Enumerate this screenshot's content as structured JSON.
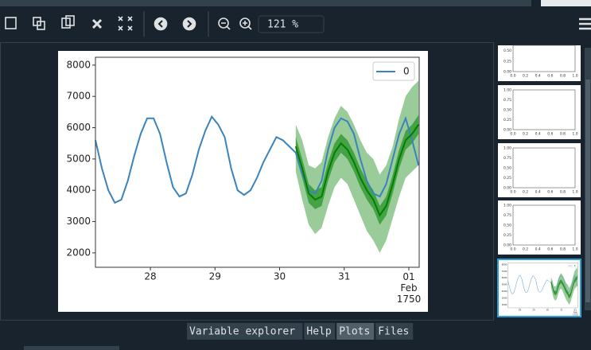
{
  "toolbar": {
    "zoom": "121 %"
  },
  "tabs": [
    "Variable explorer",
    "Help",
    "Plots",
    "Files"
  ],
  "active_tab": 2,
  "thumbnails": [
    {
      "yticks": [
        "0.50",
        "0.25",
        "0.00"
      ],
      "xticks": [
        "0.0",
        "0.2",
        "0.4",
        "0.6",
        "0.8",
        "1.0"
      ]
    },
    {
      "yticks": [
        "1.00",
        "0.75",
        "0.50",
        "0.25",
        "0.00"
      ],
      "xticks": [
        "0.0",
        "0.2",
        "0.4",
        "0.6",
        "0.8",
        "1.0"
      ]
    },
    {
      "yticks": [
        "1.00",
        "0.75",
        "0.50",
        "0.25",
        "0.00"
      ],
      "xticks": [
        "0.0",
        "0.2",
        "0.4",
        "0.6",
        "0.8",
        "1.0"
      ]
    },
    {
      "yticks": [
        "1.00",
        "0.75",
        "0.50",
        "0.25",
        "0.00"
      ],
      "xticks": [
        "0.0",
        "0.2",
        "0.4",
        "0.6",
        "0.8",
        "1.0"
      ]
    }
  ],
  "chart_data": {
    "type": "line",
    "x": [
      27.15,
      27.25,
      27.35,
      27.45,
      27.55,
      27.65,
      27.75,
      27.85,
      27.95,
      28.05,
      28.15,
      28.25,
      28.35,
      28.45,
      28.55,
      28.65,
      28.75,
      28.85,
      28.95,
      29.05,
      29.15,
      29.25,
      29.35,
      29.45,
      29.55,
      29.65,
      29.75,
      29.85,
      29.95,
      30.05,
      30.15,
      30.25,
      30.35,
      30.45,
      30.55,
      30.65,
      30.75,
      30.85,
      30.95,
      31.05,
      31.15,
      31.25,
      31.35,
      31.45,
      31.55,
      31.65,
      31.75,
      31.85,
      31.95,
      32.05,
      32.15
    ],
    "series": [
      {
        "name": "0",
        "color": "#3b83bd",
        "values": [
          5600,
          4700,
          4000,
          3600,
          3700,
          4300,
          5100,
          5800,
          6300,
          6300,
          5800,
          4900,
          4100,
          3800,
          3900,
          4500,
          5300,
          5900,
          6350,
          6100,
          5700,
          4700,
          4000,
          3850,
          4000,
          4400,
          4900,
          5300,
          5700,
          5600,
          5400,
          5200,
          4500,
          4000,
          3900,
          4300,
          5300,
          6000,
          6300,
          6200,
          5800,
          5000,
          4300,
          3900,
          3800,
          4200,
          5000,
          5800,
          6300,
          5600,
          4800
        ]
      }
    ],
    "forecast": {
      "color": "#008000",
      "x": [
        30.25,
        30.35,
        30.45,
        30.55,
        30.65,
        30.75,
        30.85,
        30.95,
        31.05,
        31.15,
        31.25,
        31.35,
        31.45,
        31.55,
        31.65,
        31.75,
        31.85,
        31.95,
        32.05,
        32.15
      ],
      "values": [
        5400,
        4700,
        3900,
        3700,
        3800,
        4600,
        5200,
        5500,
        5300,
        4900,
        4400,
        4000,
        3700,
        3200,
        3500,
        4200,
        5000,
        5600,
        5800,
        6100
      ],
      "inner_lower": [
        5100,
        4400,
        3600,
        3400,
        3500,
        4300,
        4900,
        5200,
        5000,
        4600,
        4100,
        3700,
        3400,
        2900,
        3200,
        3900,
        4700,
        5300,
        5500,
        5800
      ],
      "inner_upper": [
        5700,
        5000,
        4200,
        4000,
        4100,
        4900,
        5500,
        5800,
        5600,
        5200,
        4700,
        4300,
        4000,
        3500,
        3800,
        4500,
        5300,
        5900,
        6100,
        6400
      ],
      "outer_lower": [
        4600,
        3700,
        2900,
        2600,
        2800,
        3500,
        4100,
        4400,
        4200,
        3700,
        3200,
        2700,
        2400,
        2000,
        2400,
        3100,
        3800,
        4400,
        4600,
        4800
      ],
      "outer_upper": [
        6100,
        5600,
        4800,
        4700,
        4900,
        5700,
        6300,
        6700,
        6500,
        6100,
        5600,
        5200,
        5000,
        4500,
        4800,
        5400,
        6300,
        7000,
        7300,
        7500
      ]
    },
    "xlim": [
      27.15,
      32.16
    ],
    "ylim": [
      1540,
      8250
    ],
    "xticks": [
      {
        "value": 28,
        "label": "28"
      },
      {
        "value": 29,
        "label": "29"
      },
      {
        "value": 30,
        "label": "30"
      },
      {
        "value": 31,
        "label": "31"
      },
      {
        "value": 32,
        "label": "01\nFeb\n1750"
      }
    ],
    "yticks": [
      2000,
      3000,
      4000,
      5000,
      6000,
      7000,
      8000
    ],
    "legend": "upper right"
  }
}
